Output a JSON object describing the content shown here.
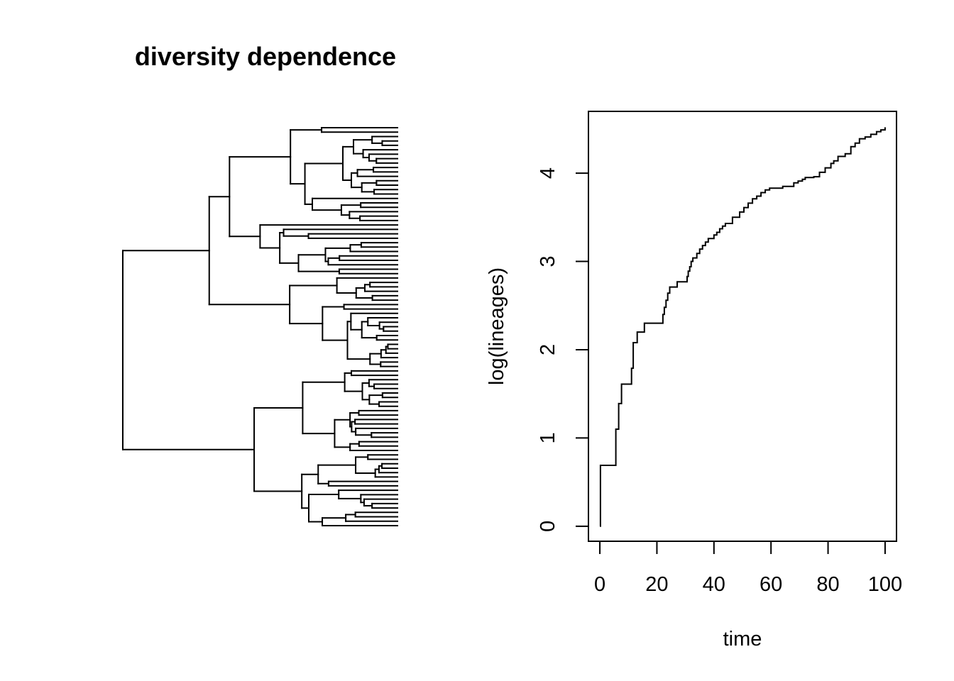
{
  "chart_data": [
    {
      "type": "tree",
      "title": "diversity dependence",
      "tips": 91,
      "axes": false
    },
    {
      "type": "line",
      "step": true,
      "title": "",
      "xlabel": "time",
      "ylabel": "log(lineages)",
      "xlim": [
        -4,
        104
      ],
      "ylim": [
        -0.17,
        4.7
      ],
      "xticks": [
        0,
        20,
        40,
        60,
        80,
        100
      ],
      "yticks": [
        0,
        1,
        2,
        3,
        4
      ],
      "grid": false,
      "points": [
        [
          0,
          0
        ],
        [
          0.2,
          0.69
        ],
        [
          5.5,
          0.69
        ],
        [
          5.6,
          1.1
        ],
        [
          6.5,
          1.1
        ],
        [
          6.6,
          1.39
        ],
        [
          7.5,
          1.39
        ],
        [
          7.6,
          1.61
        ],
        [
          11,
          1.61
        ],
        [
          11.1,
          1.79
        ],
        [
          11.6,
          1.79
        ],
        [
          11.7,
          2.08
        ],
        [
          13,
          2.08
        ],
        [
          13.1,
          2.2
        ],
        [
          15.5,
          2.2
        ],
        [
          15.6,
          2.3
        ],
        [
          22,
          2.3
        ],
        [
          22.1,
          2.4
        ],
        [
          22.6,
          2.48
        ],
        [
          23.2,
          2.56
        ],
        [
          23.8,
          2.64
        ],
        [
          24.5,
          2.71
        ],
        [
          27,
          2.71
        ],
        [
          27.1,
          2.77
        ],
        [
          30.5,
          2.77
        ],
        [
          30.6,
          2.83
        ],
        [
          31,
          2.89
        ],
        [
          31.5,
          2.94
        ],
        [
          32,
          3.0
        ],
        [
          32.6,
          3.04
        ],
        [
          34,
          3.09
        ],
        [
          35,
          3.14
        ],
        [
          36,
          3.18
        ],
        [
          37,
          3.22
        ],
        [
          38,
          3.26
        ],
        [
          40,
          3.3
        ],
        [
          41,
          3.33
        ],
        [
          42,
          3.37
        ],
        [
          43,
          3.4
        ],
        [
          44,
          3.43
        ],
        [
          46.5,
          3.5
        ],
        [
          49,
          3.56
        ],
        [
          50.5,
          3.61
        ],
        [
          52,
          3.66
        ],
        [
          53.5,
          3.71
        ],
        [
          55,
          3.74
        ],
        [
          56.5,
          3.78
        ],
        [
          58,
          3.81
        ],
        [
          59.5,
          3.83
        ],
        [
          64,
          3.83
        ],
        [
          64.1,
          3.85
        ],
        [
          67,
          3.85
        ],
        [
          68,
          3.89
        ],
        [
          69.5,
          3.91
        ],
        [
          71,
          3.93
        ],
        [
          72,
          3.95
        ],
        [
          75,
          3.96
        ],
        [
          77,
          4.01
        ],
        [
          79,
          4.06
        ],
        [
          81,
          4.11
        ],
        [
          82,
          4.14
        ],
        [
          83.5,
          4.19
        ],
        [
          86,
          4.22
        ],
        [
          88,
          4.3
        ],
        [
          89.5,
          4.34
        ],
        [
          91,
          4.39
        ],
        [
          93,
          4.41
        ],
        [
          95,
          4.44
        ],
        [
          97,
          4.47
        ],
        [
          98.5,
          4.49
        ],
        [
          100,
          4.52
        ]
      ]
    }
  ]
}
